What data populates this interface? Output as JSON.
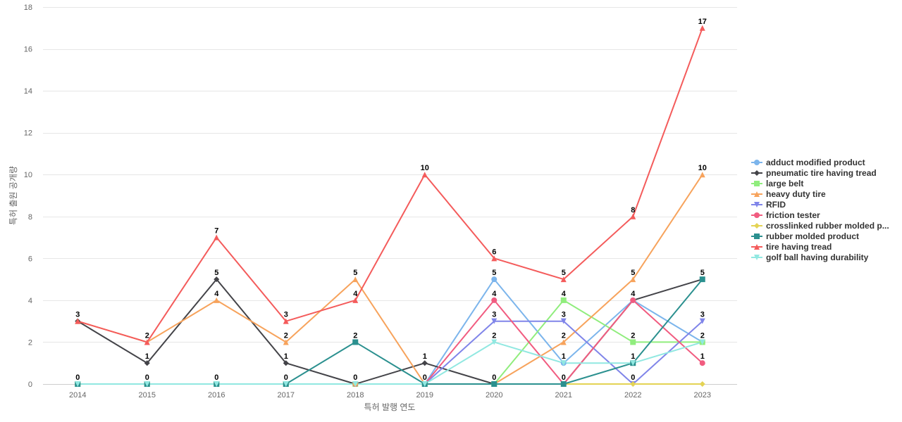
{
  "chart_data": {
    "type": "line",
    "title": "",
    "xlabel": "특허 발행 연도",
    "ylabel": "특허 출원 공개량",
    "x": [
      "2014",
      "2015",
      "2016",
      "2017",
      "2018",
      "2019",
      "2020",
      "2021",
      "2022",
      "2023"
    ],
    "ylim": [
      0,
      18
    ],
    "yticks": [
      0,
      2,
      4,
      6,
      8,
      10,
      12,
      14,
      16,
      18
    ],
    "grid": true,
    "legend_position": "right",
    "series": [
      {
        "name": "adduct modified product",
        "color": "#7cb5ec",
        "marker": "circle",
        "values": [
          0,
          0,
          0,
          0,
          0,
          0,
          5,
          1,
          4,
          2
        ]
      },
      {
        "name": "pneumatic tire having tread",
        "color": "#434348",
        "marker": "diamond",
        "values": [
          3,
          1,
          5,
          1,
          0,
          1,
          0,
          0,
          4,
          5
        ]
      },
      {
        "name": "large belt",
        "color": "#90ed7d",
        "marker": "square",
        "values": [
          0,
          0,
          0,
          0,
          0,
          0,
          0,
          4,
          2,
          2
        ]
      },
      {
        "name": "heavy duty tire",
        "color": "#f7a35c",
        "marker": "triangle",
        "values": [
          3,
          2,
          4,
          2,
          5,
          0,
          0,
          2,
          5,
          10
        ]
      },
      {
        "name": "RFID",
        "color": "#8085e9",
        "marker": "triangle-down",
        "values": [
          0,
          0,
          0,
          0,
          0,
          0,
          3,
          3,
          0,
          3
        ]
      },
      {
        "name": "friction tester",
        "color": "#f15c80",
        "marker": "circle",
        "values": [
          0,
          0,
          0,
          0,
          0,
          0,
          4,
          0,
          4,
          1
        ]
      },
      {
        "name": "crosslinked rubber molded p...",
        "color": "#e4d354",
        "marker": "diamond",
        "values": [
          0,
          0,
          0,
          0,
          0,
          0,
          0,
          0,
          0,
          0
        ]
      },
      {
        "name": "rubber molded product",
        "color": "#2b908f",
        "marker": "square",
        "values": [
          0,
          0,
          0,
          0,
          2,
          0,
          0,
          0,
          1,
          5
        ]
      },
      {
        "name": "tire having tread",
        "color": "#f45b5b",
        "marker": "triangle",
        "values": [
          3,
          2,
          7,
          3,
          4,
          10,
          6,
          5,
          8,
          17
        ]
      },
      {
        "name": "golf ball having durability",
        "color": "#91e8e1",
        "marker": "triangle-down",
        "values": [
          0,
          0,
          0,
          0,
          0,
          0,
          2,
          1,
          1,
          2
        ]
      }
    ],
    "data_labels": [
      {
        "x": "2014",
        "value": 3
      },
      {
        "x": "2014",
        "value": 0
      },
      {
        "x": "2015",
        "value": 2
      },
      {
        "x": "2015",
        "value": 1
      },
      {
        "x": "2015",
        "value": 0
      },
      {
        "x": "2016",
        "value": 7
      },
      {
        "x": "2016",
        "value": 5
      },
      {
        "x": "2016",
        "value": 4
      },
      {
        "x": "2016",
        "value": 0
      },
      {
        "x": "2017",
        "value": 3
      },
      {
        "x": "2017",
        "value": 2
      },
      {
        "x": "2017",
        "value": 1
      },
      {
        "x": "2017",
        "value": 0
      },
      {
        "x": "2018",
        "value": 5
      },
      {
        "x": "2018",
        "value": 4
      },
      {
        "x": "2018",
        "value": 2
      },
      {
        "x": "2018",
        "value": 0
      },
      {
        "x": "2019",
        "value": 10
      },
      {
        "x": "2019",
        "value": 1
      },
      {
        "x": "2019",
        "value": 0
      },
      {
        "x": "2020",
        "value": 6
      },
      {
        "x": "2020",
        "value": 5
      },
      {
        "x": "2020",
        "value": 4
      },
      {
        "x": "2020",
        "value": 3
      },
      {
        "x": "2020",
        "value": 2
      },
      {
        "x": "2020",
        "value": 0
      },
      {
        "x": "2021",
        "value": 5
      },
      {
        "x": "2021",
        "value": 4
      },
      {
        "x": "2021",
        "value": 3
      },
      {
        "x": "2021",
        "value": 2
      },
      {
        "x": "2021",
        "value": 1
      },
      {
        "x": "2021",
        "value": 0
      },
      {
        "x": "2022",
        "value": 8
      },
      {
        "x": "2022",
        "value": 5
      },
      {
        "x": "2022",
        "value": 4
      },
      {
        "x": "2022",
        "value": 2
      },
      {
        "x": "2022",
        "value": 1
      },
      {
        "x": "2022",
        "value": 0
      },
      {
        "x": "2023",
        "value": 17
      },
      {
        "x": "2023",
        "value": 10
      },
      {
        "x": "2023",
        "value": 5
      },
      {
        "x": "2023",
        "value": 3
      },
      {
        "x": "2023",
        "value": 2
      },
      {
        "x": "2023",
        "value": 1
      }
    ]
  }
}
